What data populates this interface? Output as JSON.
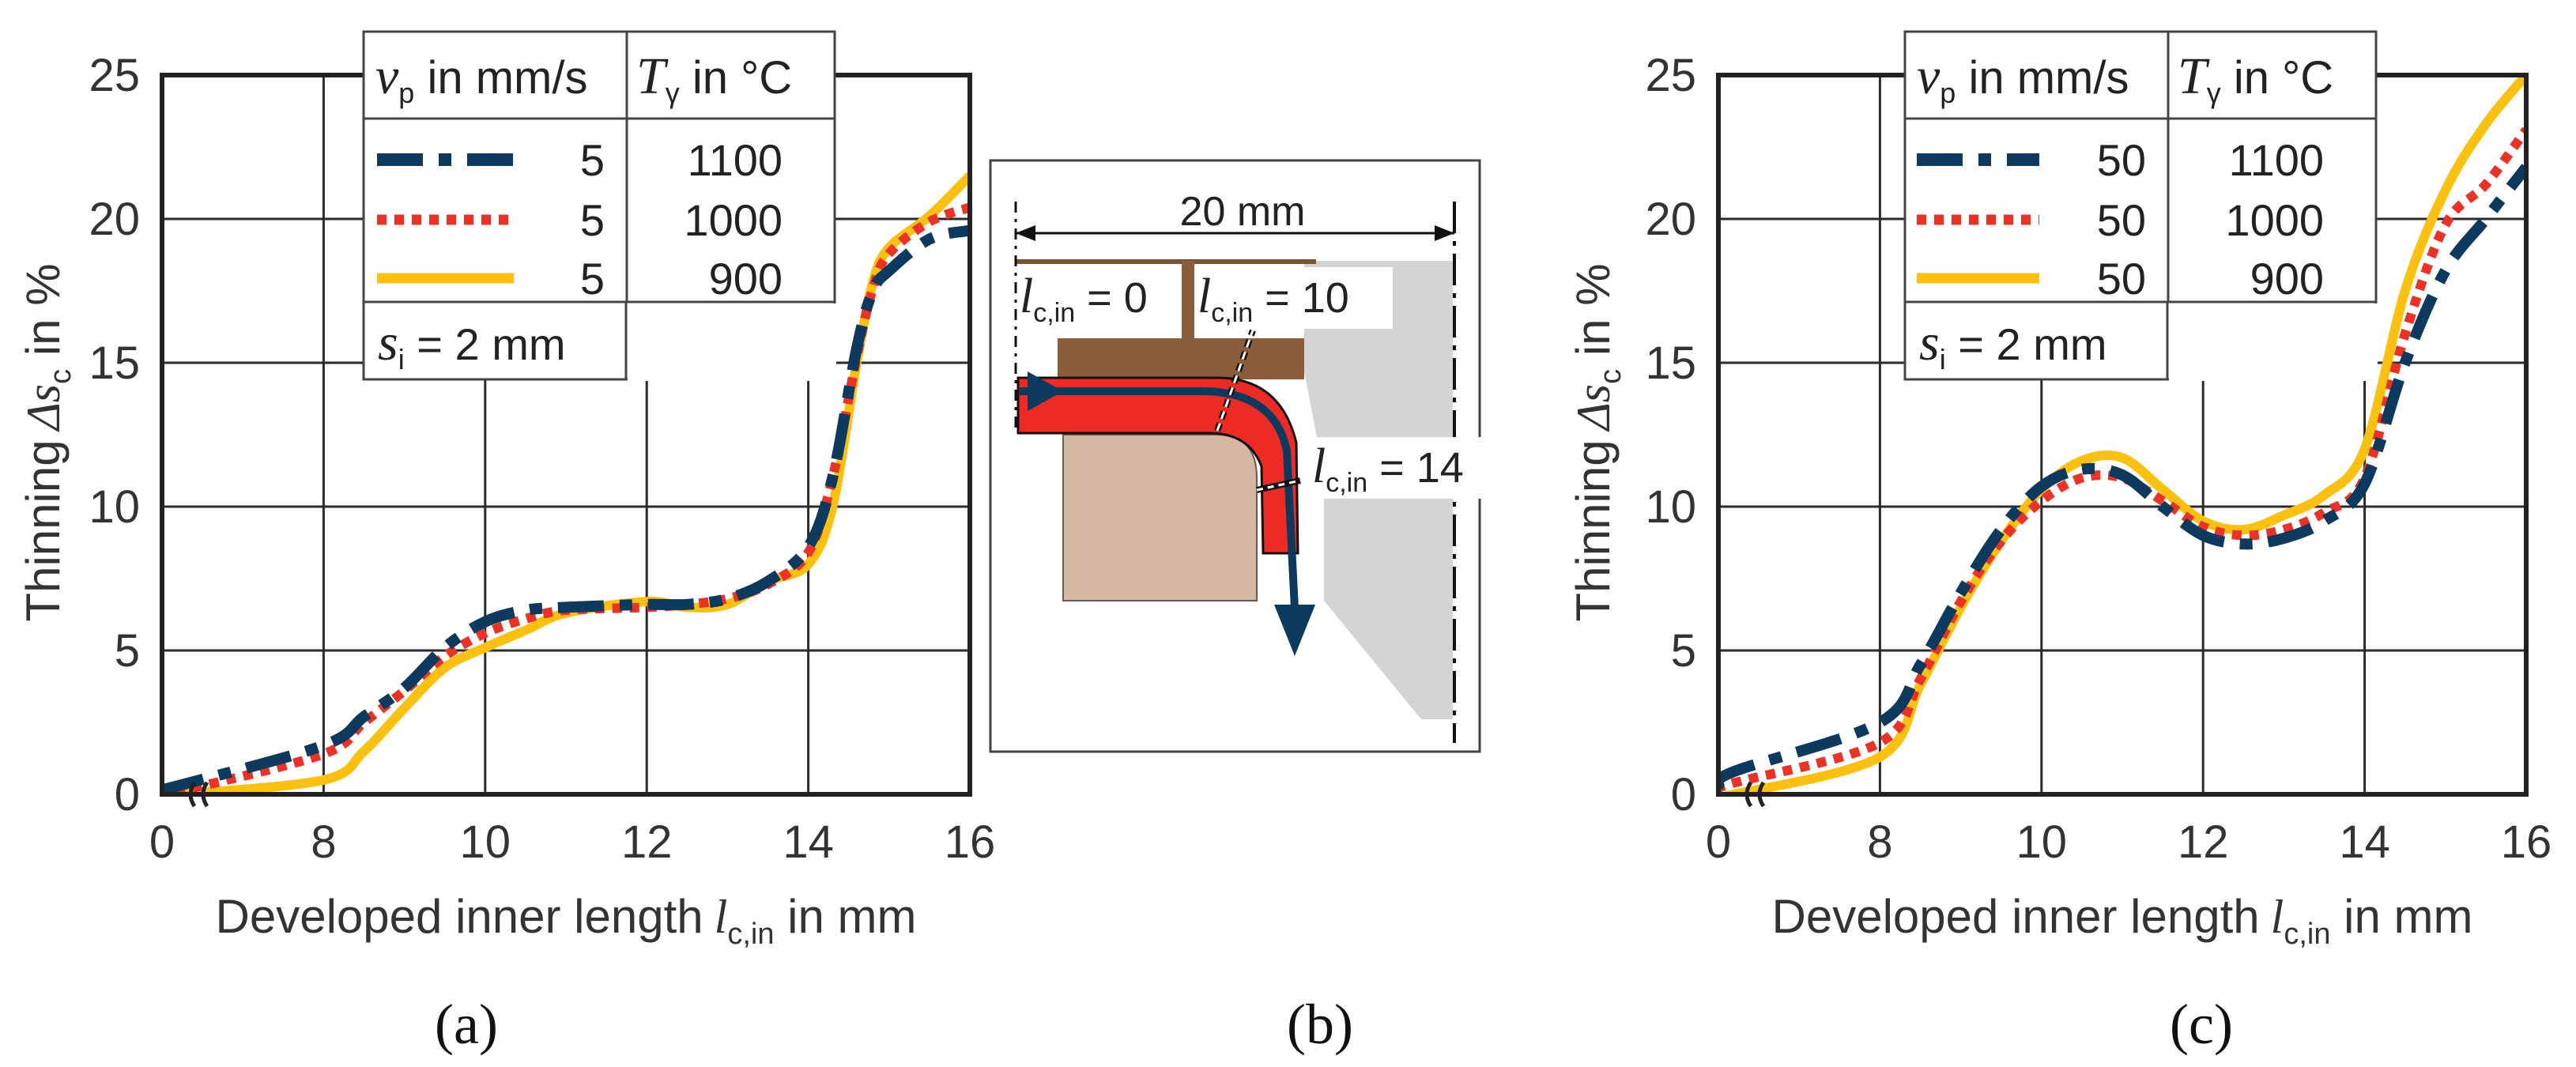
{
  "chart_data": [
    {
      "id": "a",
      "type": "line",
      "panel_label": "(a)",
      "xlabel": "Developed inner length",
      "xlabel_symbol": "l",
      "xlabel_sub": "c,in",
      "xlabel_unit": " in mm",
      "ylabel": "Thinning",
      "ylabel_symbol": "Δs",
      "ylabel_sub": "c",
      "ylabel_unit": " in %",
      "x_ticks": [
        "0",
        "8",
        "10",
        "12",
        "14",
        "16"
      ],
      "y_ticks": [
        "0",
        "5",
        "10",
        "15",
        "20",
        "25"
      ],
      "x_break": "axis break between 0 and 8",
      "ylim": [
        0,
        25
      ],
      "grid": true,
      "legend": {
        "header_vp": "v",
        "header_vp_sub": "p",
        "header_vp_unit": " in mm/s",
        "header_T": "T",
        "header_T_sub": "γ",
        "header_T_unit": " in °C",
        "footer_symbol": "s",
        "footer_sub": "i",
        "footer_text": " = 2 mm",
        "rows": [
          {
            "vp": "5",
            "T": "1100"
          },
          {
            "vp": "5",
            "T": "1000"
          },
          {
            "vp": "5",
            "T": "900"
          }
        ]
      },
      "series": [
        {
          "name": "5 mm/s, 1100 °C",
          "color": "#0c3a5e",
          "style": "dash-dot",
          "points": [
            [
              0,
              0.2
            ],
            [
              0.7,
              0.3
            ],
            [
              8,
              1.7
            ],
            [
              8.5,
              2.7
            ],
            [
              9,
              3.7
            ],
            [
              9.5,
              5.1
            ],
            [
              10,
              6.0
            ],
            [
              10.5,
              6.4
            ],
            [
              11,
              6.5
            ],
            [
              12,
              6.6
            ],
            [
              12.5,
              6.6
            ],
            [
              13,
              6.8
            ],
            [
              13.5,
              7.4
            ],
            [
              14,
              8.6
            ],
            [
              14.3,
              11
            ],
            [
              14.6,
              15.5
            ],
            [
              14.8,
              17.5
            ],
            [
              15,
              18.2
            ],
            [
              15.5,
              19.3
            ],
            [
              16,
              19.6
            ]
          ]
        },
        {
          "name": "5 mm/s, 1000 °C",
          "color": "#ee3125",
          "style": "dotted",
          "points": [
            [
              0,
              0.05
            ],
            [
              0.7,
              0.1
            ],
            [
              8,
              1.4
            ],
            [
              8.5,
              2.5
            ],
            [
              9,
              3.6
            ],
            [
              9.5,
              4.8
            ],
            [
              10,
              5.6
            ],
            [
              10.5,
              6.1
            ],
            [
              11,
              6.4
            ],
            [
              12,
              6.5
            ],
            [
              12.5,
              6.6
            ],
            [
              13,
              6.8
            ],
            [
              13.5,
              7.3
            ],
            [
              14,
              8.4
            ],
            [
              14.3,
              11
            ],
            [
              14.6,
              15.2
            ],
            [
              14.8,
              17.6
            ],
            [
              15,
              18.8
            ],
            [
              15.5,
              19.9
            ],
            [
              16,
              20.4
            ]
          ]
        },
        {
          "name": "5 mm/s, 900 °C",
          "color": "#fcc10e",
          "style": "solid",
          "points": [
            [
              0,
              0
            ],
            [
              0.7,
              0
            ],
            [
              8,
              0.5
            ],
            [
              8.5,
              1.5
            ],
            [
              9,
              3.0
            ],
            [
              9.5,
              4.4
            ],
            [
              10,
              5.1
            ],
            [
              10.5,
              5.7
            ],
            [
              11,
              6.3
            ],
            [
              12,
              6.7
            ],
            [
              12.5,
              6.5
            ],
            [
              13,
              6.6
            ],
            [
              13.5,
              7.4
            ],
            [
              14,
              8.0
            ],
            [
              14.3,
              10
            ],
            [
              14.6,
              15.0
            ],
            [
              14.8,
              17.8
            ],
            [
              15,
              19.0
            ],
            [
              15.5,
              20.1
            ],
            [
              16,
              21.5
            ]
          ]
        }
      ]
    },
    {
      "id": "c",
      "type": "line",
      "panel_label": "(c)",
      "xlabel": "Developed inner length",
      "xlabel_symbol": "l",
      "xlabel_sub": "c,in",
      "xlabel_unit": " in mm",
      "ylabel": "Thinning",
      "ylabel_symbol": "Δs",
      "ylabel_sub": "c",
      "ylabel_unit": " in %",
      "x_ticks": [
        "0",
        "8",
        "10",
        "12",
        "14",
        "16"
      ],
      "y_ticks": [
        "0",
        "5",
        "10",
        "15",
        "20",
        "25"
      ],
      "x_break": "axis break between 0 and 8",
      "ylim": [
        0,
        25
      ],
      "grid": true,
      "legend": {
        "header_vp": "v",
        "header_vp_sub": "p",
        "header_vp_unit": " in mm/s",
        "header_T": "T",
        "header_T_sub": "γ",
        "header_T_unit": " in °C",
        "footer_symbol": "s",
        "footer_sub": "i",
        "footer_text": " = 2 mm",
        "rows": [
          {
            "vp": "50",
            "T": "1100"
          },
          {
            "vp": "50",
            "T": "1000"
          },
          {
            "vp": "50",
            "T": "900"
          }
        ]
      },
      "series": [
        {
          "name": "50 mm/s, 1100 °C",
          "color": "#0c3a5e",
          "style": "dash-dot",
          "points": [
            [
              0,
              0.3
            ],
            [
              0.7,
              0.8
            ],
            [
              8,
              2.5
            ],
            [
              8.5,
              4.5
            ],
            [
              9,
              7.0
            ],
            [
              9.5,
              9.2
            ],
            [
              10,
              10.7
            ],
            [
              10.5,
              11.3
            ],
            [
              11,
              11.1
            ],
            [
              11.5,
              10.0
            ],
            [
              12,
              9.0
            ],
            [
              12.5,
              8.7
            ],
            [
              13,
              8.9
            ],
            [
              13.5,
              9.5
            ],
            [
              14,
              10.8
            ],
            [
              14.5,
              15.0
            ],
            [
              15,
              18.2
            ],
            [
              15.5,
              20.0
            ],
            [
              16,
              21.8
            ]
          ]
        },
        {
          "name": "50 mm/s, 1000 °C",
          "color": "#ee3125",
          "style": "dotted",
          "points": [
            [
              0,
              0.2
            ],
            [
              0.7,
              0.4
            ],
            [
              8,
              1.8
            ],
            [
              8.5,
              4.0
            ],
            [
              9,
              6.7
            ],
            [
              9.5,
              8.8
            ],
            [
              10,
              10.2
            ],
            [
              10.5,
              11.0
            ],
            [
              11,
              11.0
            ],
            [
              11.5,
              10.2
            ],
            [
              12,
              9.3
            ],
            [
              12.5,
              9.0
            ],
            [
              13,
              9.2
            ],
            [
              13.5,
              9.8
            ],
            [
              14,
              11.0
            ],
            [
              14.5,
              16.0
            ],
            [
              15,
              19.8
            ],
            [
              15.5,
              21.2
            ],
            [
              16,
              23.1
            ]
          ]
        },
        {
          "name": "50 mm/s, 900 °C",
          "color": "#fcc10e",
          "style": "solid",
          "points": [
            [
              0,
              0
            ],
            [
              0.7,
              0
            ],
            [
              8,
              1.3
            ],
            [
              8.5,
              3.8
            ],
            [
              9,
              6.5
            ],
            [
              9.5,
              8.8
            ],
            [
              10,
              10.6
            ],
            [
              10.5,
              11.6
            ],
            [
              11,
              11.7
            ],
            [
              11.5,
              10.6
            ],
            [
              12,
              9.5
            ],
            [
              12.5,
              9.2
            ],
            [
              13,
              9.7
            ],
            [
              13.5,
              10.4
            ],
            [
              14,
              12.0
            ],
            [
              14.5,
              17.5
            ],
            [
              15,
              21.0
            ],
            [
              15.5,
              23.3
            ],
            [
              16,
              25.0
            ]
          ]
        }
      ]
    }
  ],
  "diagram_b": {
    "panel_label": "(b)",
    "dimension_label": "20 mm",
    "markers": [
      {
        "symbol": "l",
        "sub": "c,in",
        "value": " = 0"
      },
      {
        "symbol": "l",
        "sub": "c,in",
        "value": " = 10"
      },
      {
        "symbol": "l",
        "sub": "c,in",
        "value": " = 14"
      }
    ]
  }
}
